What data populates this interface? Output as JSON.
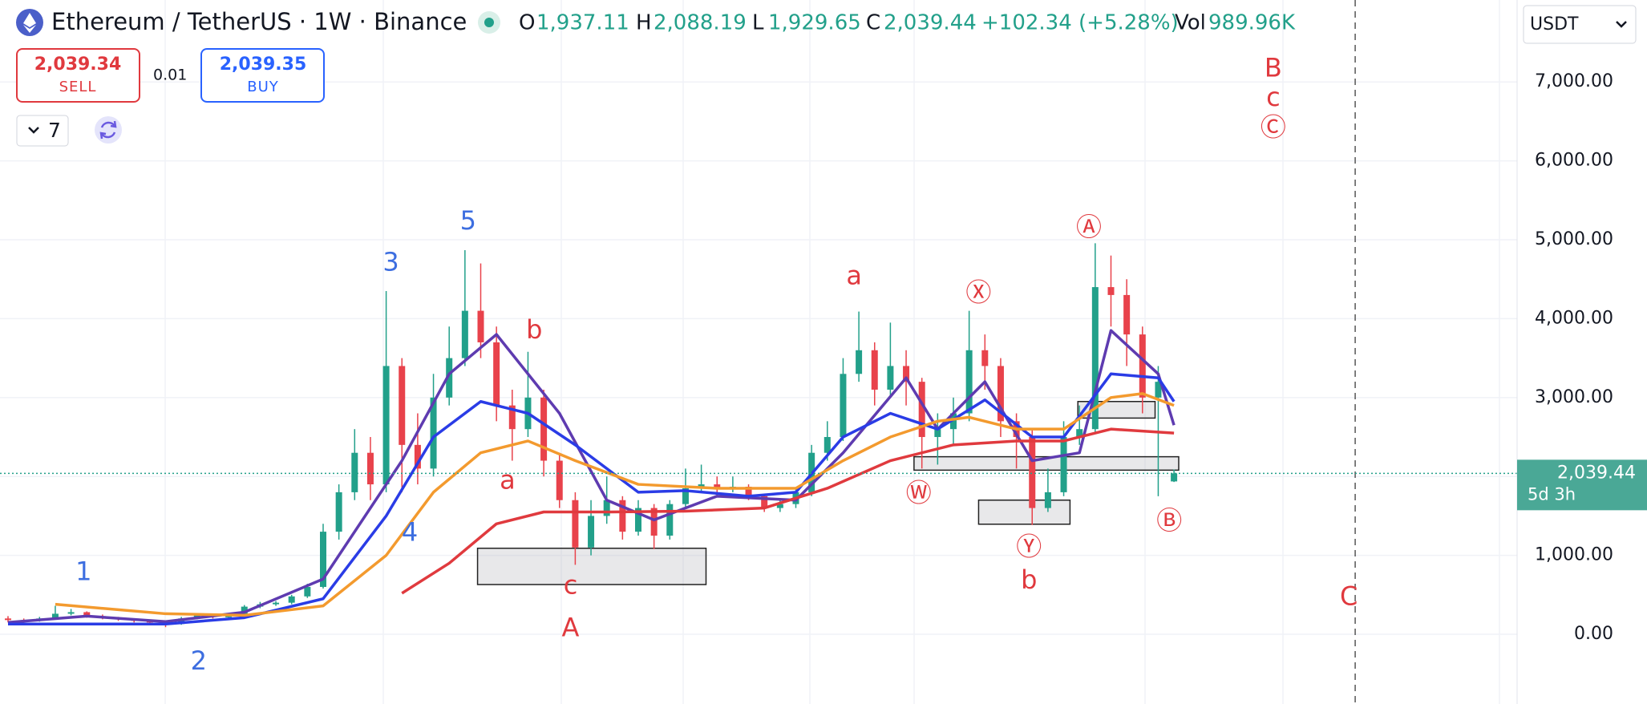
{
  "header": {
    "title": "Ethereum / TetherUS · 1W · Binance",
    "ohlc": [
      {
        "label": "O",
        "value": "1,937.11"
      },
      {
        "label": "H",
        "value": "2,088.19"
      },
      {
        "label": "L",
        "value": "1,929.65"
      },
      {
        "label": "C",
        "value": "2,039.44"
      }
    ],
    "change": "+102.34 (+5.28%)",
    "volume": {
      "label": "Vol",
      "value": "989.96",
      "unit": "K"
    }
  },
  "trade": {
    "sell": {
      "price": "2,039.34",
      "label": "SELL"
    },
    "quantity": "0.01",
    "buy": {
      "price": "2,039.35",
      "label": "BUY"
    }
  },
  "indicators": "7",
  "currency": "USDT",
  "chart_data": {
    "type": "candlestick",
    "ylim": [
      -884,
      8039
    ],
    "yticks": [
      {
        "value": 0,
        "label": "0.00"
      },
      {
        "value": 1000,
        "label": "1,000.00"
      },
      {
        "value": 2000,
        "label": "2,000.00"
      },
      {
        "value": 3000,
        "label": "3,000.00"
      },
      {
        "value": 4000,
        "label": "4,000.00"
      },
      {
        "value": 5000,
        "label": "5,000.00"
      },
      {
        "value": 6000,
        "label": "6,000.00"
      },
      {
        "value": 7000,
        "label": "7,000.00"
      }
    ],
    "grid": true,
    "up_color": "#22a08a",
    "down_color": "#e8424b",
    "open": [
      200,
      180,
      170,
      200,
      260,
      280,
      230,
      210,
      190,
      170,
      150,
      130,
      200,
      240,
      230,
      230,
      350,
      380,
      400,
      480,
      600,
      1300,
      1800,
      2300,
      1900,
      3400,
      2400,
      2100,
      3000,
      3500,
      4100,
      3700,
      2900,
      2600,
      3000,
      2200,
      1700,
      1100,
      1500,
      1700,
      1300,
      1600,
      1250,
      1650,
      1850,
      1900,
      1850,
      1870,
      1750,
      1600,
      1650,
      1800,
      2300,
      2500,
      3300,
      3600,
      3100,
      3400,
      3200,
      2500,
      2600,
      2800,
      3600,
      3400,
      2700,
      2500,
      1600,
      1800,
      2500,
      2600,
      4400,
      4300,
      3800,
      3000,
      1937.11
    ],
    "high": [
      230,
      200,
      220,
      360,
      320,
      290,
      250,
      220,
      200,
      180,
      160,
      220,
      260,
      260,
      250,
      370,
      410,
      420,
      500,
      640,
      1400,
      1900,
      2600,
      2500,
      4350,
      3500,
      2800,
      3300,
      3900,
      4868,
      4700,
      3900,
      3100,
      3580,
      3100,
      2300,
      1800,
      1700,
      2000,
      1750,
      1700,
      1650,
      1700,
      2100,
      2150,
      2000,
      2000,
      1900,
      1780,
      1700,
      1850,
      2400,
      2700,
      3500,
      4090,
      3700,
      3950,
      3600,
      3250,
      2800,
      3000,
      4100,
      3800,
      3500,
      2800,
      2600,
      2100,
      2700,
      2900,
      4956,
      4800,
      4500,
      3900,
      3400,
      2088.19
    ],
    "low": [
      150,
      150,
      160,
      190,
      240,
      210,
      190,
      170,
      150,
      120,
      90,
      120,
      190,
      200,
      210,
      220,
      330,
      360,
      380,
      460,
      580,
      1200,
      1700,
      1700,
      1800,
      1800,
      1900,
      2000,
      2900,
      3400,
      3500,
      2700,
      2200,
      2500,
      2000,
      1600,
      880,
      1000,
      1400,
      1200,
      1250,
      1080,
      1200,
      1600,
      1800,
      1750,
      1800,
      1700,
      1550,
      1550,
      1600,
      1750,
      2200,
      2450,
      3200,
      2900,
      3000,
      2900,
      2100,
      2150,
      2400,
      2700,
      3100,
      2500,
      2100,
      1385,
      1550,
      1750,
      2400,
      2550,
      3900,
      3400,
      2800,
      1750,
      1929.65
    ],
    "close": [
      180,
      170,
      200,
      260,
      280,
      230,
      210,
      190,
      170,
      150,
      130,
      200,
      240,
      230,
      230,
      350,
      380,
      400,
      480,
      600,
      1300,
      1800,
      2300,
      1900,
      3400,
      2400,
      2100,
      3000,
      3500,
      4100,
      3700,
      2900,
      2600,
      3000,
      2200,
      1700,
      1100,
      1500,
      1700,
      1300,
      1600,
      1250,
      1650,
      1850,
      1900,
      1850,
      1870,
      1750,
      1600,
      1650,
      1800,
      2300,
      2500,
      3300,
      3600,
      3100,
      3400,
      3200,
      2500,
      2600,
      2800,
      3600,
      3400,
      2700,
      2500,
      1600,
      1800,
      2500,
      2600,
      4400,
      4300,
      3800,
      3000,
      3200,
      2039.44
    ],
    "series": [
      {
        "color": "#5e3bb0",
        "x": [
          0,
          5,
          10,
          15,
          20,
          25,
          28,
          31,
          35,
          38,
          41,
          45,
          50,
          53,
          57,
          59,
          62,
          65,
          68,
          70,
          73,
          74
        ],
        "values": [
          150,
          230,
          160,
          280,
          700,
          2200,
          3300,
          3800,
          2800,
          1700,
          1450,
          1750,
          1700,
          2300,
          3250,
          2600,
          3200,
          2200,
          2300,
          3850,
          3300,
          2650
        ]
      },
      {
        "color": "#2a3ce6",
        "x": [
          0,
          10,
          15,
          20,
          24,
          27,
          30,
          33,
          36,
          40,
          43,
          47,
          50,
          53,
          56,
          59,
          62,
          65,
          67,
          70,
          73,
          74
        ],
        "values": [
          130,
          130,
          210,
          450,
          1500,
          2500,
          2950,
          2800,
          2400,
          1800,
          1820,
          1750,
          1800,
          2500,
          2800,
          2600,
          2970,
          2500,
          2500,
          3300,
          3250,
          2950
        ]
      },
      {
        "color": "#f39a2e",
        "x": [
          3,
          10,
          15,
          20,
          24,
          27,
          30,
          33,
          36,
          40,
          45,
          50,
          53,
          56,
          59,
          61,
          64,
          67,
          70,
          72,
          74
        ],
        "values": [
          380,
          260,
          240,
          360,
          1000,
          1800,
          2300,
          2450,
          2200,
          1900,
          1850,
          1850,
          2200,
          2500,
          2700,
          2750,
          2600,
          2600,
          3000,
          3050,
          2900
        ]
      },
      {
        "color": "#e03a3e",
        "x": [
          25,
          28,
          31,
          34,
          38,
          43,
          48,
          52,
          56,
          60,
          64,
          67,
          70,
          74
        ],
        "values": [
          520,
          900,
          1400,
          1550,
          1550,
          1560,
          1600,
          1850,
          2200,
          2400,
          2450,
          2450,
          2600,
          2550
        ]
      }
    ],
    "zones": [
      {
        "x": [
          29.8,
          44.3
        ],
        "y": [
          630,
          1090
        ]
      },
      {
        "x": [
          57.5,
          74.3
        ],
        "y": [
          2080,
          2250
        ]
      },
      {
        "x": [
          61.6,
          67.4
        ],
        "y": [
          1395,
          1700
        ]
      },
      {
        "x": [
          67.9,
          72.8
        ],
        "y": [
          2740,
          2950
        ]
      }
    ],
    "annotations": [
      {
        "text": "1",
        "x": 4.8,
        "y": 776,
        "color": "#3d6ee0"
      },
      {
        "text": "2",
        "x": 12.1,
        "y": -355,
        "color": "#3d6ee0"
      },
      {
        "text": "3",
        "x": 24.3,
        "y": 4700,
        "color": "#3d6ee0"
      },
      {
        "text": "4",
        "x": 25.5,
        "y": 1276,
        "color": "#3d6ee0"
      },
      {
        "text": "5",
        "x": 29.2,
        "y": 5224,
        "color": "#3d6ee0"
      },
      {
        "text": "a",
        "x": 31.7,
        "y": 1934,
        "color": "#e0393e"
      },
      {
        "text": "b",
        "x": 33.4,
        "y": 3842,
        "color": "#e0393e"
      },
      {
        "text": "c",
        "x": 35.7,
        "y": 605,
        "color": "#e0393e"
      },
      {
        "text": "A",
        "x": 35.7,
        "y": 66,
        "color": "#e0393e"
      },
      {
        "text": "a",
        "x": 53.7,
        "y": 4526,
        "color": "#e0393e"
      },
      {
        "text": "Ⓧ",
        "x": 61.6,
        "y": 4316,
        "color": "#e0393e"
      },
      {
        "text": "Ⓦ",
        "x": 57.8,
        "y": 1776,
        "color": "#e0393e"
      },
      {
        "text": "Ⓐ",
        "x": 68.6,
        "y": 5145,
        "color": "#e0393e"
      },
      {
        "text": "Ⓨ",
        "x": 64.8,
        "y": 1092,
        "color": "#e0393e"
      },
      {
        "text": "b",
        "x": 64.8,
        "y": 671,
        "color": "#e0393e"
      },
      {
        "text": "Ⓑ",
        "x": 73.7,
        "y": 1421,
        "color": "#e0393e"
      },
      {
        "text": "B",
        "x": 80.3,
        "y": 7158,
        "color": "#e0393e"
      },
      {
        "text": "c",
        "x": 80.3,
        "y": 6789,
        "color": "#e0393e"
      },
      {
        "text": "Ⓒ",
        "x": 80.3,
        "y": 6408,
        "color": "#e0393e"
      },
      {
        "text": "C",
        "x": 85.1,
        "y": 461,
        "color": "#e0393e"
      }
    ],
    "marker_x": 85.5,
    "last_price": {
      "value": 2039.44,
      "label": "2,039.44"
    },
    "countdown": "5d 3h"
  }
}
